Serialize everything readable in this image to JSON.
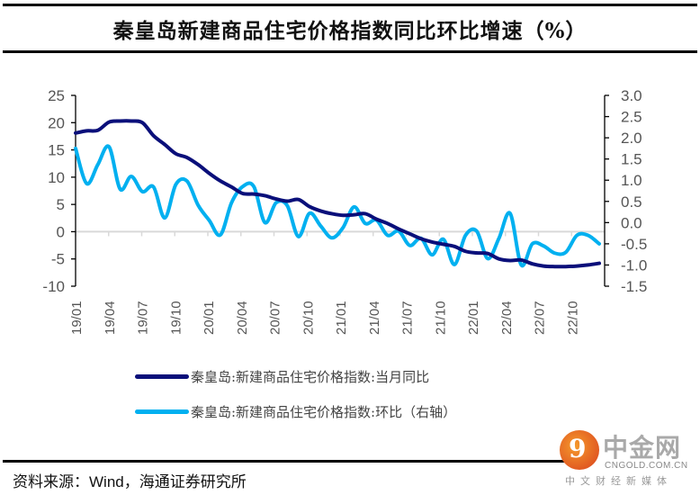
{
  "title": "秦皇岛新建商品住宅价格指数同比环比增速（%）",
  "source_label": "资料来源：",
  "source_en": "Wind",
  "source_rest": "，海通证券研究所",
  "watermark": {
    "glyph": "9",
    "name": "中金网",
    "url": "CNGOLD.COM.CN",
    "tagline": "中文财经新媒体"
  },
  "chart_data": {
    "type": "line",
    "title": "秦皇岛新建商品住宅价格指数同比环比增速（%）",
    "xlabel": "",
    "ylabel": "",
    "x_tick_labels": [
      "19/01",
      "19/04",
      "19/07",
      "19/10",
      "20/01",
      "20/04",
      "20/07",
      "20/10",
      "21/01",
      "21/04",
      "21/07",
      "21/10",
      "22/01",
      "22/04",
      "22/07",
      "22/10"
    ],
    "x": [
      "19/01",
      "19/02",
      "19/03",
      "19/04",
      "19/05",
      "19/06",
      "19/07",
      "19/08",
      "19/09",
      "19/10",
      "19/11",
      "19/12",
      "20/01",
      "20/02",
      "20/03",
      "20/04",
      "20/05",
      "20/06",
      "20/07",
      "20/08",
      "20/09",
      "20/10",
      "20/11",
      "20/12",
      "21/01",
      "21/02",
      "21/03",
      "21/04",
      "21/05",
      "21/06",
      "21/07",
      "21/08",
      "21/09",
      "21/10",
      "21/11",
      "21/12",
      "22/01",
      "22/02",
      "22/03",
      "22/04",
      "22/05",
      "22/06",
      "22/07",
      "22/08",
      "22/09",
      "22/10",
      "22/11",
      "22/12"
    ],
    "y_left": {
      "ylim": [
        -10,
        25
      ],
      "ticks": [
        "25",
        "20",
        "15",
        "10",
        "5",
        "0",
        "-5",
        "-10"
      ]
    },
    "y_right": {
      "ylim": [
        -1.5,
        3.0
      ],
      "ticks": [
        "3.0",
        "2.5",
        "2.0",
        "1.5",
        "1.0",
        "0.5",
        "0.0",
        "-0.5",
        "-1.0",
        "-1.5"
      ]
    },
    "grid": false,
    "legend_position": "bottom",
    "colors": {
      "yoy": "#0a0f7a",
      "mom": "#00b0f0",
      "zero_line": "#d9d9d9",
      "axis": "#000000"
    },
    "series": [
      {
        "name": "秦皇岛:新建商品住宅价格指数:当月同比",
        "axis": "left",
        "values": [
          18.1,
          18.5,
          18.6,
          20.1,
          20.3,
          20.3,
          20.0,
          17.6,
          16.0,
          14.3,
          13.6,
          12.3,
          10.7,
          9.3,
          8.2,
          7.0,
          6.9,
          6.6,
          6.0,
          5.6,
          5.9,
          4.6,
          3.8,
          3.3,
          3.0,
          3.1,
          3.3,
          2.3,
          1.5,
          0.5,
          -0.4,
          -1.3,
          -1.9,
          -2.3,
          -2.7,
          -3.6,
          -3.9,
          -4.0,
          -5.0,
          -5.3,
          -5.2,
          -5.9,
          -6.3,
          -6.4,
          -6.4,
          -6.3,
          -6.1,
          -5.8
        ]
      },
      {
        "name": "秦皇岛:新建商品住宅价格指数:环比（右轴）",
        "axis": "right",
        "values": [
          1.75,
          0.92,
          1.37,
          1.79,
          0.79,
          1.09,
          0.73,
          0.84,
          0.11,
          0.9,
          0.98,
          0.41,
          0.05,
          -0.29,
          0.47,
          0.85,
          0.85,
          0.0,
          0.47,
          0.4,
          -0.33,
          0.22,
          -0.08,
          -0.36,
          -0.12,
          0.37,
          -0.02,
          0.06,
          -0.3,
          -0.2,
          -0.54,
          -0.37,
          -0.76,
          -0.39,
          -0.99,
          -0.3,
          -0.2,
          -0.85,
          -0.37,
          0.22,
          -1.0,
          -0.5,
          -0.55,
          -0.72,
          -0.7,
          -0.3,
          -0.3,
          -0.5
        ]
      }
    ]
  }
}
